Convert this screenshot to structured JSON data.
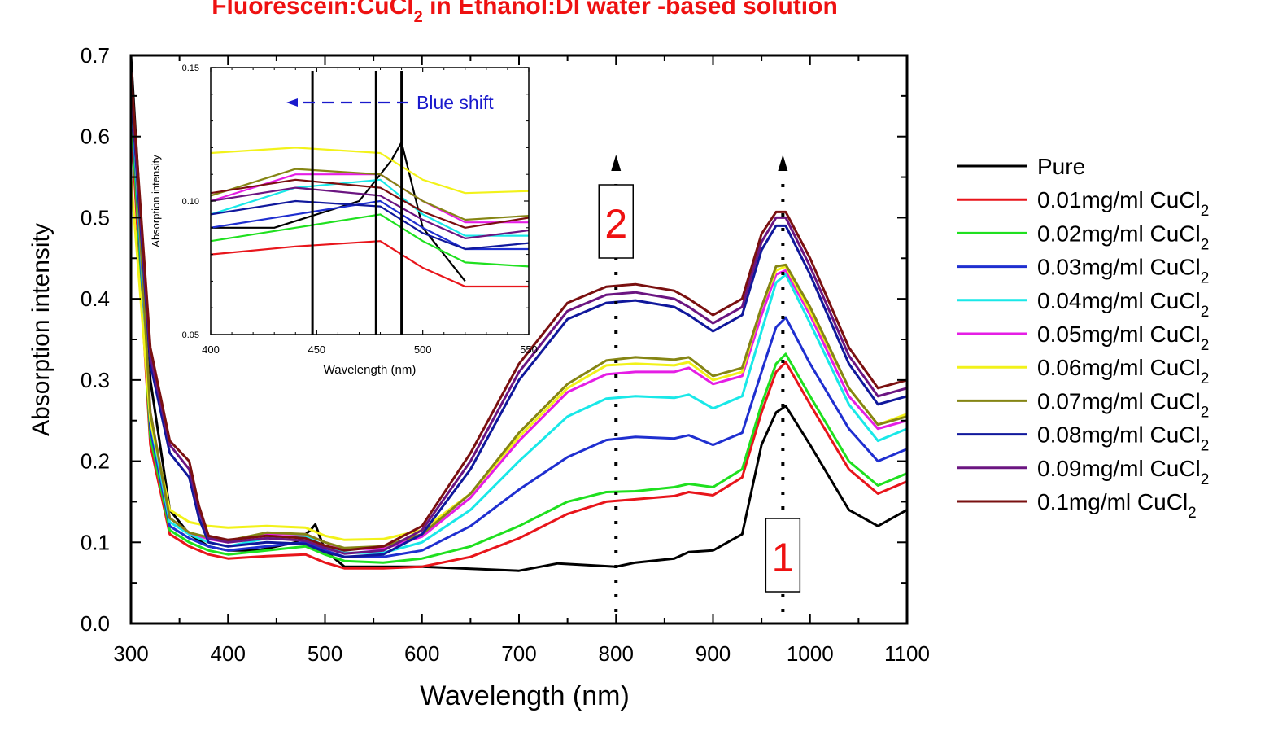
{
  "chart_data": {
    "type": "line",
    "title_main": "Fluorescein:CuCl",
    "title_sub": "2",
    "title_rest": " in Ethanol:DI water -based solution",
    "title_color": "#ee1111",
    "xlabel": "Wavelength (nm)",
    "ylabel": "Absorption intensity",
    "xlim": [
      300,
      1100
    ],
    "ylim": [
      0.0,
      0.7
    ],
    "x_ticks": [
      "300",
      "400",
      "500",
      "600",
      "700",
      "800",
      "900",
      "1000",
      "1100"
    ],
    "y_ticks": [
      "0.0",
      "0.1",
      "0.2",
      "0.3",
      "0.4",
      "0.5",
      "0.6",
      "0.7"
    ],
    "legend_placement": "right",
    "series": [
      {
        "name": "Pure",
        "sub": "",
        "color": "#000000",
        "x": [
          300,
          320,
          340,
          360,
          380,
          400,
          430,
          470,
          485,
          490,
          500,
          520,
          600,
          700,
          740,
          800,
          820,
          860,
          875,
          900,
          930,
          950,
          965,
          975,
          1000,
          1040,
          1070,
          1100
        ],
        "y": [
          0.7,
          0.3,
          0.14,
          0.11,
          0.095,
          0.09,
          0.09,
          0.1,
          0.115,
          0.122,
          0.09,
          0.07,
          0.07,
          0.065,
          0.074,
          0.07,
          0.075,
          0.08,
          0.088,
          0.09,
          0.11,
          0.22,
          0.26,
          0.268,
          0.22,
          0.14,
          0.12,
          0.14
        ]
      },
      {
        "name": "0.01mg/ml CuCl",
        "sub": "2",
        "color": "#e8151b",
        "x": [
          300,
          320,
          340,
          360,
          380,
          400,
          440,
          480,
          500,
          520,
          560,
          600,
          650,
          700,
          750,
          790,
          820,
          860,
          875,
          900,
          930,
          950,
          965,
          975,
          1000,
          1040,
          1070,
          1100
        ],
        "y": [
          0.62,
          0.22,
          0.11,
          0.095,
          0.085,
          0.08,
          0.083,
          0.085,
          0.075,
          0.068,
          0.068,
          0.07,
          0.082,
          0.105,
          0.135,
          0.15,
          0.153,
          0.157,
          0.162,
          0.158,
          0.18,
          0.26,
          0.31,
          0.322,
          0.27,
          0.19,
          0.16,
          0.175
        ]
      },
      {
        "name": "0.02mg/ml CuCl",
        "sub": "2",
        "color": "#1fe01f",
        "x": [
          300,
          320,
          340,
          360,
          380,
          400,
          440,
          480,
          500,
          520,
          560,
          600,
          650,
          700,
          750,
          790,
          820,
          860,
          875,
          900,
          930,
          950,
          965,
          975,
          1000,
          1040,
          1070,
          1100
        ],
        "y": [
          0.64,
          0.23,
          0.115,
          0.1,
          0.09,
          0.085,
          0.09,
          0.095,
          0.085,
          0.077,
          0.075,
          0.08,
          0.095,
          0.12,
          0.15,
          0.162,
          0.163,
          0.168,
          0.172,
          0.168,
          0.19,
          0.27,
          0.32,
          0.332,
          0.28,
          0.2,
          0.17,
          0.185
        ]
      },
      {
        "name": "0.03mg/ml CuCl",
        "sub": "2",
        "color": "#1f2fd0",
        "x": [
          300,
          320,
          340,
          360,
          380,
          400,
          440,
          480,
          500,
          520,
          560,
          600,
          650,
          700,
          750,
          790,
          820,
          860,
          875,
          900,
          930,
          950,
          965,
          975,
          1000,
          1040,
          1070,
          1100
        ],
        "y": [
          0.66,
          0.24,
          0.12,
          0.105,
          0.095,
          0.09,
          0.095,
          0.1,
          0.09,
          0.082,
          0.082,
          0.09,
          0.12,
          0.165,
          0.205,
          0.226,
          0.23,
          0.228,
          0.232,
          0.22,
          0.235,
          0.31,
          0.365,
          0.377,
          0.32,
          0.24,
          0.2,
          0.215
        ]
      },
      {
        "name": "0.04mg/ml CuCl",
        "sub": "2",
        "color": "#19e8e8",
        "x": [
          300,
          320,
          340,
          360,
          380,
          400,
          440,
          480,
          500,
          520,
          560,
          600,
          650,
          700,
          750,
          790,
          820,
          860,
          875,
          900,
          930,
          950,
          965,
          975,
          1000,
          1040,
          1070,
          1100
        ],
        "y": [
          0.67,
          0.25,
          0.125,
          0.11,
          0.1,
          0.095,
          0.105,
          0.108,
          0.095,
          0.087,
          0.087,
          0.1,
          0.14,
          0.2,
          0.255,
          0.277,
          0.28,
          0.278,
          0.282,
          0.265,
          0.28,
          0.36,
          0.42,
          0.43,
          0.37,
          0.27,
          0.225,
          0.24
        ]
      },
      {
        "name": "0.05mg/ml CuCl",
        "sub": "2",
        "color": "#e51ee5",
        "x": [
          300,
          320,
          340,
          360,
          380,
          400,
          440,
          480,
          500,
          520,
          560,
          600,
          650,
          700,
          750,
          790,
          820,
          860,
          875,
          900,
          930,
          950,
          965,
          975,
          1000,
          1040,
          1070,
          1100
        ],
        "y": [
          0.68,
          0.26,
          0.13,
          0.112,
          0.104,
          0.1,
          0.11,
          0.11,
          0.1,
          0.092,
          0.092,
          0.107,
          0.155,
          0.225,
          0.285,
          0.307,
          0.31,
          0.31,
          0.315,
          0.295,
          0.305,
          0.38,
          0.43,
          0.435,
          0.38,
          0.28,
          0.24,
          0.25
        ]
      },
      {
        "name": "0.06mg/ml CuCl",
        "sub": "2",
        "color": "#f2f21a",
        "x": [
          300,
          320,
          340,
          360,
          380,
          400,
          440,
          480,
          500,
          520,
          560,
          600,
          650,
          700,
          750,
          790,
          820,
          860,
          875,
          900,
          930,
          950,
          965,
          975,
          1000,
          1040,
          1070,
          1100
        ],
        "y": [
          0.55,
          0.25,
          0.14,
          0.125,
          0.12,
          0.118,
          0.12,
          0.118,
          0.108,
          0.103,
          0.104,
          0.115,
          0.16,
          0.23,
          0.29,
          0.318,
          0.32,
          0.318,
          0.322,
          0.3,
          0.31,
          0.39,
          0.435,
          0.44,
          0.385,
          0.29,
          0.245,
          0.258
        ]
      },
      {
        "name": "0.07mg/ml CuCl",
        "sub": "2",
        "color": "#858514",
        "x": [
          300,
          320,
          340,
          360,
          380,
          400,
          440,
          480,
          500,
          520,
          560,
          600,
          650,
          700,
          750,
          790,
          820,
          860,
          875,
          900,
          930,
          950,
          965,
          975,
          1000,
          1040,
          1070,
          1100
        ],
        "y": [
          0.68,
          0.26,
          0.13,
          0.112,
          0.106,
          0.102,
          0.112,
          0.11,
          0.1,
          0.093,
          0.095,
          0.11,
          0.16,
          0.235,
          0.295,
          0.324,
          0.328,
          0.325,
          0.328,
          0.305,
          0.315,
          0.39,
          0.44,
          0.442,
          0.39,
          0.29,
          0.245,
          0.255
        ]
      },
      {
        "name": "0.08mg/ml CuCl",
        "sub": "2",
        "color": "#10189c",
        "x": [
          300,
          320,
          340,
          360,
          370,
          380,
          400,
          440,
          480,
          500,
          520,
          560,
          600,
          650,
          700,
          750,
          790,
          820,
          860,
          875,
          900,
          930,
          950,
          965,
          975,
          1000,
          1040,
          1070,
          1100
        ],
        "y": [
          0.66,
          0.32,
          0.21,
          0.18,
          0.13,
          0.1,
          0.095,
          0.1,
          0.098,
          0.088,
          0.082,
          0.085,
          0.11,
          0.19,
          0.3,
          0.375,
          0.395,
          0.398,
          0.39,
          0.38,
          0.36,
          0.38,
          0.46,
          0.49,
          0.49,
          0.43,
          0.32,
          0.27,
          0.28
        ]
      },
      {
        "name": "0.09mg/ml CuCl",
        "sub": "2",
        "color": "#6b1581",
        "x": [
          300,
          320,
          340,
          360,
          370,
          380,
          400,
          440,
          480,
          500,
          520,
          560,
          600,
          650,
          700,
          750,
          790,
          820,
          860,
          875,
          900,
          930,
          950,
          965,
          975,
          1000,
          1040,
          1070,
          1100
        ],
        "y": [
          0.67,
          0.33,
          0.22,
          0.19,
          0.14,
          0.105,
          0.1,
          0.105,
          0.102,
          0.093,
          0.086,
          0.09,
          0.115,
          0.2,
          0.31,
          0.385,
          0.405,
          0.408,
          0.4,
          0.39,
          0.37,
          0.39,
          0.47,
          0.5,
          0.5,
          0.44,
          0.33,
          0.28,
          0.29
        ]
      },
      {
        "name": "0.1mg/ml CuCl",
        "sub": "2",
        "color": "#7a1010",
        "x": [
          300,
          320,
          340,
          360,
          370,
          380,
          400,
          440,
          480,
          500,
          520,
          560,
          600,
          650,
          700,
          750,
          790,
          820,
          860,
          875,
          900,
          930,
          950,
          965,
          975,
          1000,
          1040,
          1070,
          1100
        ],
        "y": [
          0.68,
          0.34,
          0.225,
          0.2,
          0.145,
          0.108,
          0.103,
          0.108,
          0.105,
          0.096,
          0.09,
          0.095,
          0.12,
          0.21,
          0.32,
          0.395,
          0.415,
          0.418,
          0.41,
          0.4,
          0.38,
          0.4,
          0.48,
          0.507,
          0.507,
          0.45,
          0.34,
          0.29,
          0.3
        ]
      }
    ],
    "annotations": {
      "label_1": "1",
      "label_2": "2",
      "label_color": "#ee1111",
      "arrow_x": [
        800,
        972
      ]
    },
    "inset": {
      "xlabel": "Wavelength (nm)",
      "ylabel": "Absorption intensity",
      "xlim": [
        400,
        550
      ],
      "ylim": [
        0.05,
        0.15
      ],
      "x_ticks": [
        "400",
        "450",
        "500",
        "550"
      ],
      "y_ticks": [
        "0.05",
        "0.10",
        "0.15"
      ],
      "vlines_x": [
        448,
        478,
        490
      ],
      "blue_shift_label": "Blue shift",
      "blue_shift_color": "#1a1acc"
    }
  }
}
